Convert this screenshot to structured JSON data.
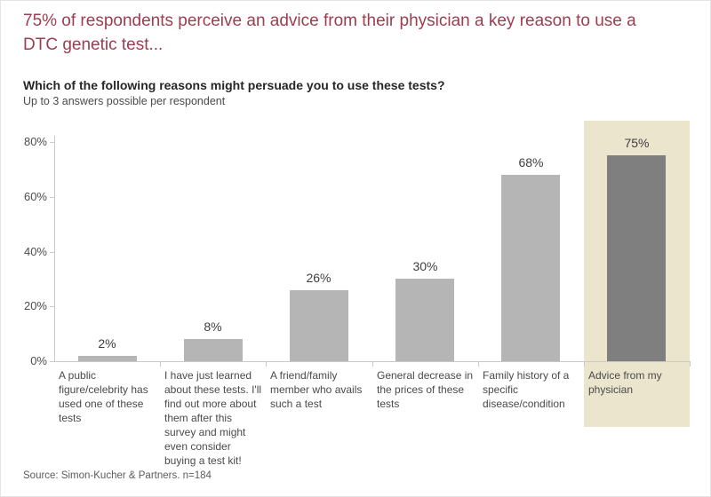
{
  "header": {
    "title_lines": [
      "75% of respondents perceive an advice from their physician a key reason to use a",
      "DTC genetic test..."
    ],
    "question": "Which of the following reasons might persuade you to use these tests?",
    "note": "Up to 3 answers possible per respondent"
  },
  "chart_data": {
    "type": "bar",
    "categories": [
      "A public figure/celebrity has used one of these tests",
      "I have just learned about these tests. I'll find out more about them after this survey and might even consider buying a test kit!",
      "A friend/family member who avails such a test",
      "General decrease in the prices of these tests",
      "Family history of a specific disease/condition",
      "Advice from my physician"
    ],
    "values": [
      2,
      8,
      26,
      30,
      68,
      75
    ],
    "value_labels": [
      "2%",
      "8%",
      "26%",
      "30%",
      "68%",
      "75%"
    ],
    "highlighted_index": 5,
    "title": "Which of the following reasons might persuade you to use these tests?",
    "subtitle": "Up to 3 answers possible per respondent",
    "xlabel": "",
    "ylabel": "",
    "ylim": [
      0,
      80
    ],
    "yticks": [
      "0%",
      "20%",
      "40%",
      "60%",
      "80%"
    ],
    "grid": false,
    "legend": false,
    "colors": {
      "title": "#9e3c50",
      "text_dark": "#262626",
      "text_medium": "#4a4a4a",
      "bar": "#b5b5b5",
      "highlight_bar": "#7f7f7f",
      "highlight_background": "#ece5ce",
      "axis": "#c9c9c9"
    }
  },
  "source": "Source: Simon-Kucher & Partners. n=184"
}
